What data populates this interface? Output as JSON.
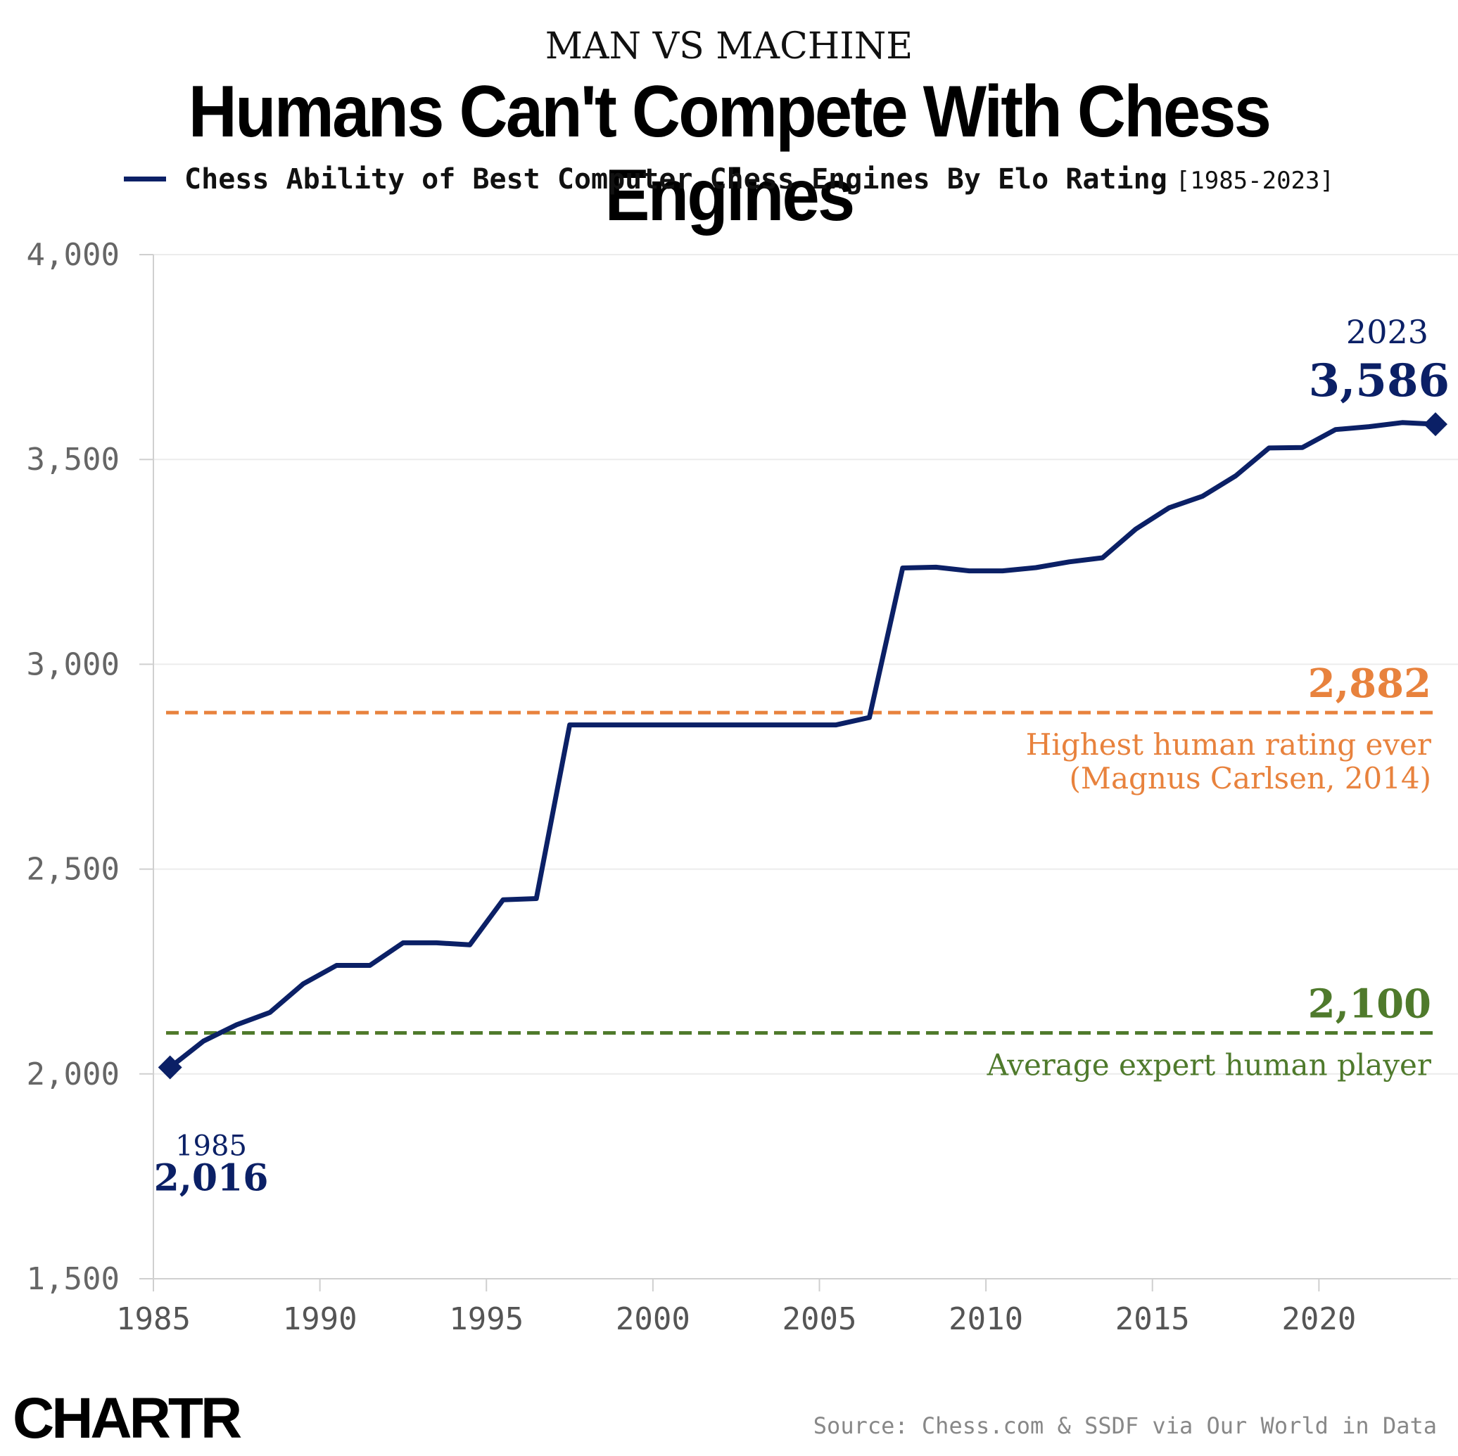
{
  "header": {
    "kicker": "MAN VS MACHINE",
    "title": "Humans Can't Compete With Chess Engines"
  },
  "legend": {
    "label": "Chess Ability of Best Computer Chess Engines By Elo Rating",
    "range": "[1985-2023]",
    "color": "#0b2066"
  },
  "chart_data": {
    "type": "line",
    "title": "Humans Can't Compete With Chess Engines",
    "subtitle": "Chess Ability of Best Computer Chess Engines By Elo Rating [1985-2023]",
    "xlabel": "",
    "ylabel": "",
    "xlim": [
      1985,
      2023.5
    ],
    "ylim": [
      1500,
      4000
    ],
    "x_ticks": [
      1985,
      1990,
      1995,
      2000,
      2005,
      2010,
      2015,
      2020
    ],
    "x_tick_labels": [
      "1985",
      "1990",
      "1995",
      "2000",
      "2005",
      "2010",
      "2015",
      "2020"
    ],
    "y_ticks": [
      1500,
      2000,
      2500,
      3000,
      3500,
      4000
    ],
    "y_tick_labels": [
      "1,500",
      "2,000",
      "2,500",
      "3,000",
      "3,500",
      "4,000"
    ],
    "grid": "horizontal",
    "series": [
      {
        "name": "Chess Ability of Best Computer Chess Engines By Elo Rating",
        "color": "#0b2066",
        "x": [
          1985.5,
          1986.5,
          1987.5,
          1988.5,
          1989.5,
          1990.5,
          1991.5,
          1992.5,
          1993.5,
          1994.5,
          1995.5,
          1996.5,
          1997.5,
          1998.5,
          1999.5,
          2000.5,
          2001.5,
          2002.5,
          2003.5,
          2004.5,
          2005.5,
          2006.5,
          2007.5,
          2008.5,
          2009.5,
          2010.5,
          2011.5,
          2012.5,
          2013.5,
          2014.5,
          2015.5,
          2016.5,
          2017.5,
          2018.5,
          2019.5,
          2020.5,
          2021.5,
          2022.5,
          2023.5
        ],
        "values": [
          2016,
          2080,
          2120,
          2150,
          2220,
          2265,
          2265,
          2320,
          2320,
          2315,
          2425,
          2428,
          2852,
          2852,
          2852,
          2852,
          2852,
          2852,
          2852,
          2852,
          2852,
          2870,
          3235,
          3237,
          3228,
          3228,
          3236,
          3250,
          3260,
          3330,
          3382,
          3410,
          3460,
          3528,
          3529,
          3573,
          3580,
          3590,
          3586
        ]
      }
    ],
    "reference_lines": [
      {
        "value": 2882,
        "label": "2,882",
        "note_line1": "Highest human rating ever",
        "note_line2": "(Magnus Carlsen, 2014)",
        "color": "#e8823d"
      },
      {
        "value": 2100,
        "label": "2,100",
        "note_line1": "Average expert human player",
        "note_line2": "",
        "color": "#4f7a2c"
      }
    ],
    "annotations": [
      {
        "x": 1985.5,
        "value": 2016,
        "year_label": "1985",
        "value_label": "2,016"
      },
      {
        "x": 2023.5,
        "value": 3586,
        "year_label": "2023",
        "value_label": "3,586"
      }
    ]
  },
  "footer": {
    "logo": "CHARTR",
    "source": "Source: Chess.com & SSDF via Our World in Data"
  }
}
